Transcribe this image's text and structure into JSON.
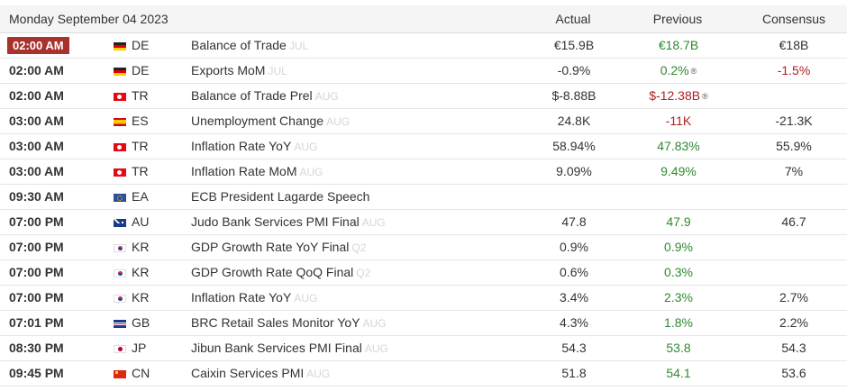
{
  "header": {
    "date": "Monday September 04 2023",
    "actual": "Actual",
    "previous": "Previous",
    "consensus": "Consensus"
  },
  "revised_icon": "revised-icon",
  "colors": {
    "positive": "#2f8a2f",
    "negative": "#b02020",
    "live_badge": "#a8322c"
  },
  "rows": [
    {
      "time": "02:00 AM",
      "live": true,
      "flag": "de-flag-icon",
      "country": "DE",
      "event": "Balance of Trade",
      "ref": "JUL",
      "actual": "€15.9B",
      "previous": "€18.7B",
      "previous_color": "green",
      "previous_revised": false,
      "consensus": "€18B",
      "consensus_color": ""
    },
    {
      "time": "02:00 AM",
      "live": false,
      "flag": "de-flag-icon",
      "country": "DE",
      "event": "Exports MoM",
      "ref": "JUL",
      "actual": "-0.9%",
      "previous": "0.2%",
      "previous_color": "green",
      "previous_revised": true,
      "consensus": "-1.5%",
      "consensus_color": "red"
    },
    {
      "time": "02:00 AM",
      "live": false,
      "flag": "tr-flag-icon",
      "country": "TR",
      "event": "Balance of Trade Prel",
      "ref": "AUG",
      "actual": "$-8.88B",
      "previous": "$-12.38B",
      "previous_color": "red",
      "previous_revised": true,
      "consensus": "",
      "consensus_color": ""
    },
    {
      "time": "03:00 AM",
      "live": false,
      "flag": "es-flag-icon",
      "country": "ES",
      "event": "Unemployment Change",
      "ref": "AUG",
      "actual": "24.8K",
      "previous": "-11K",
      "previous_color": "red",
      "previous_revised": false,
      "consensus": "-21.3K",
      "consensus_color": ""
    },
    {
      "time": "03:00 AM",
      "live": false,
      "flag": "tr-flag-icon",
      "country": "TR",
      "event": "Inflation Rate YoY",
      "ref": "AUG",
      "actual": "58.94%",
      "previous": "47.83%",
      "previous_color": "green",
      "previous_revised": false,
      "consensus": "55.9%",
      "consensus_color": ""
    },
    {
      "time": "03:00 AM",
      "live": false,
      "flag": "tr-flag-icon",
      "country": "TR",
      "event": "Inflation Rate MoM",
      "ref": "AUG",
      "actual": "9.09%",
      "previous": "9.49%",
      "previous_color": "green",
      "previous_revised": false,
      "consensus": "7%",
      "consensus_color": ""
    },
    {
      "time": "09:30 AM",
      "live": false,
      "flag": "ea-flag-icon",
      "country": "EA",
      "event": "ECB President Lagarde Speech",
      "ref": "",
      "actual": "",
      "previous": "",
      "previous_color": "",
      "previous_revised": false,
      "consensus": "",
      "consensus_color": ""
    },
    {
      "time": "07:00 PM",
      "live": false,
      "flag": "au-flag-icon",
      "country": "AU",
      "event": "Judo Bank Services PMI Final",
      "ref": "AUG",
      "actual": "47.8",
      "previous": "47.9",
      "previous_color": "green",
      "previous_revised": false,
      "consensus": "46.7",
      "consensus_color": ""
    },
    {
      "time": "07:00 PM",
      "live": false,
      "flag": "kr-flag-icon",
      "country": "KR",
      "event": "GDP Growth Rate YoY Final",
      "ref": "Q2",
      "actual": "0.9%",
      "previous": "0.9%",
      "previous_color": "green",
      "previous_revised": false,
      "consensus": "",
      "consensus_color": ""
    },
    {
      "time": "07:00 PM",
      "live": false,
      "flag": "kr-flag-icon",
      "country": "KR",
      "event": "GDP Growth Rate QoQ Final",
      "ref": "Q2",
      "actual": "0.6%",
      "previous": "0.3%",
      "previous_color": "green",
      "previous_revised": false,
      "consensus": "",
      "consensus_color": ""
    },
    {
      "time": "07:00 PM",
      "live": false,
      "flag": "kr-flag-icon",
      "country": "KR",
      "event": "Inflation Rate YoY",
      "ref": "AUG",
      "actual": "3.4%",
      "previous": "2.3%",
      "previous_color": "green",
      "previous_revised": false,
      "consensus": "2.7%",
      "consensus_color": ""
    },
    {
      "time": "07:01 PM",
      "live": false,
      "flag": "gb-flag-icon",
      "country": "GB",
      "event": "BRC Retail Sales Monitor YoY",
      "ref": "AUG",
      "actual": "4.3%",
      "previous": "1.8%",
      "previous_color": "green",
      "previous_revised": false,
      "consensus": "2.2%",
      "consensus_color": ""
    },
    {
      "time": "08:30 PM",
      "live": false,
      "flag": "jp-flag-icon",
      "country": "JP",
      "event": "Jibun Bank Services PMI Final",
      "ref": "AUG",
      "actual": "54.3",
      "previous": "53.8",
      "previous_color": "green",
      "previous_revised": false,
      "consensus": "54.3",
      "consensus_color": ""
    },
    {
      "time": "09:45 PM",
      "live": false,
      "flag": "cn-flag-icon",
      "country": "CN",
      "event": "Caixin Services PMI",
      "ref": "AUG",
      "actual": "51.8",
      "previous": "54.1",
      "previous_color": "green",
      "previous_revised": false,
      "consensus": "53.6",
      "consensus_color": ""
    }
  ]
}
